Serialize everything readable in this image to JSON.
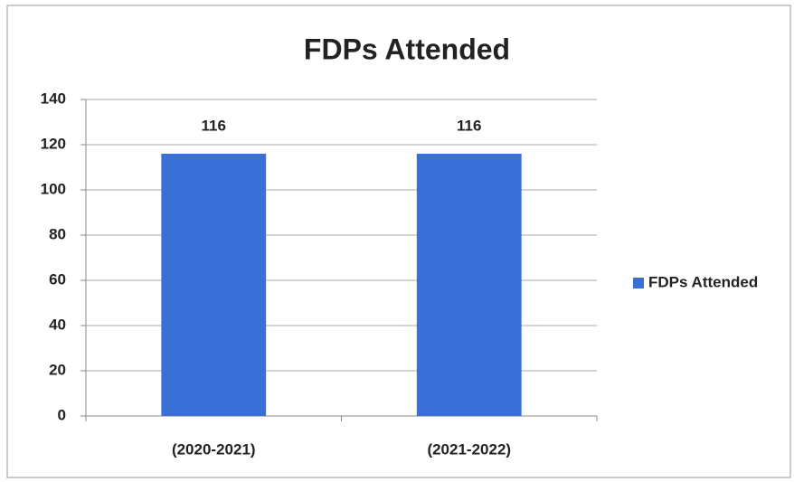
{
  "chart_data": {
    "type": "bar",
    "title": "FDPs Attended",
    "categories": [
      "(2020-2021)",
      "(2021-2022)"
    ],
    "series": [
      {
        "name": "FDPs Attended",
        "color": "#3a6fd8",
        "values": [
          116,
          116
        ]
      }
    ],
    "ylim": [
      0,
      140
    ],
    "yticks": [
      0,
      20,
      40,
      60,
      80,
      100,
      120,
      140
    ],
    "grid": true,
    "legend": "right"
  }
}
